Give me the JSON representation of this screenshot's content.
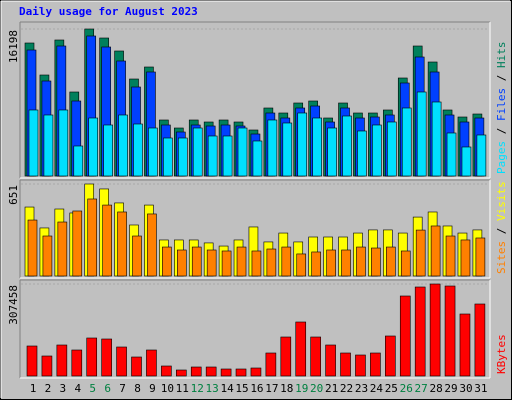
{
  "title": "Daily usage for August 2023",
  "legend_separator": " / ",
  "chart_data": [
    {
      "type": "bar",
      "ylim": [
        0,
        16198
      ],
      "yticks": [
        16198
      ],
      "series": [
        {
          "name": "Hits",
          "color": "#00805c",
          "values": [
            14655,
            11129,
            14986,
            9256,
            16198,
            15206,
            13774,
            10688,
            12011,
            6171,
            5289,
            6171,
            5950,
            6171,
            5950,
            5069,
            7493,
            6942,
            8044,
            8264,
            6391,
            8044,
            6942,
            6942,
            7273,
            10799,
            14325,
            12562,
            7273,
            6501,
            6832
          ]
        },
        {
          "name": "Files",
          "color": "#0040ff",
          "values": [
            13884,
            10468,
            14325,
            8264,
            15427,
            14215,
            12672,
            9807,
            11460,
            5620,
            4848,
            5620,
            5510,
            5620,
            5510,
            4628,
            6942,
            6391,
            7493,
            7713,
            5950,
            7493,
            6391,
            6501,
            6722,
            10248,
            13113,
            11460,
            6722,
            5950,
            6391
          ]
        },
        {
          "name": "Pages",
          "color": "#00e0ff",
          "values": [
            7273,
            6722,
            7273,
            3306,
            6391,
            5620,
            6722,
            5730,
            5289,
            4187,
            4187,
            5289,
            4408,
            4408,
            5289,
            3857,
            6171,
            5840,
            6942,
            6391,
            5289,
            6611,
            4959,
            5620,
            5950,
            7493,
            9256,
            8154,
            4738,
            3196,
            4518
          ]
        }
      ]
    },
    {
      "type": "bar",
      "ylim": [
        0,
        651
      ],
      "yticks": [
        651
      ],
      "series": [
        {
          "name": "Visits",
          "color": "#ffff00",
          "values": [
            488,
            340,
            474,
            446,
            651,
            616,
            517,
            361,
            502,
            255,
            255,
            255,
            234,
            212,
            255,
            347,
            241,
            304,
            241,
            276,
            276,
            276,
            304,
            326,
            326,
            304,
            417,
            453,
            354,
            304,
            326
          ]
        },
        {
          "name": "Sites",
          "color": "#ff8000",
          "values": [
            396,
            283,
            382,
            460,
            545,
            502,
            453,
            283,
            439,
            205,
            184,
            205,
            184,
            177,
            205,
            177,
            191,
            205,
            156,
            170,
            184,
            184,
            205,
            198,
            205,
            177,
            325,
            354,
            283,
            255,
            269
          ]
        }
      ]
    },
    {
      "type": "bar",
      "ylim": [
        0,
        307458
      ],
      "yticks": [
        307458
      ],
      "categories": [
        "1",
        "2",
        "3",
        "4",
        "5",
        "6",
        "7",
        "8",
        "9",
        "10",
        "11",
        "12",
        "13",
        "14",
        "15",
        "16",
        "17",
        "18",
        "19",
        "20",
        "21",
        "22",
        "23",
        "24",
        "25",
        "26",
        "27",
        "28",
        "29",
        "30",
        "31"
      ],
      "category_colors": [
        "#000000",
        "#000000",
        "#000000",
        "#000000",
        "#008040",
        "#008040",
        "#000000",
        "#000000",
        "#000000",
        "#000000",
        "#000000",
        "#008040",
        "#008040",
        "#000000",
        "#000000",
        "#000000",
        "#000000",
        "#000000",
        "#008040",
        "#008040",
        "#000000",
        "#000000",
        "#000000",
        "#000000",
        "#000000",
        "#008040",
        "#008040",
        "#000000",
        "#000000",
        "#000000",
        "#000000"
      ],
      "series": [
        {
          "name": "KBytes",
          "color": "#ff0000",
          "values": [
            100260,
            66840,
            103602,
            86892,
            126996,
            123654,
            96918,
            63498,
            86892,
            33420,
            20052,
            30078,
            30078,
            23394,
            23394,
            26736,
            76866,
            130338,
            180468,
            130338,
            103602,
            76866,
            70182,
            76866,
            133680,
            267360,
            297438,
            307458,
            300780,
            207204,
            240624
          ]
        }
      ]
    }
  ]
}
